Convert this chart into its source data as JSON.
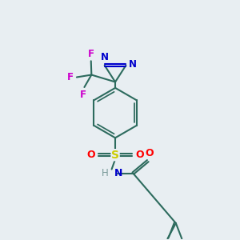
{
  "background_color": "#e8eef2",
  "bond_color": "#2d6b5e",
  "nitrogen_color": "#0000cc",
  "oxygen_color": "#ff0000",
  "sulfur_color": "#cccc00",
  "fluorine_color": "#cc00cc",
  "hydrogen_color": "#7a9a9a",
  "figsize": [
    3.0,
    3.0
  ],
  "dpi": 100,
  "xlim": [
    0,
    10
  ],
  "ylim": [
    0,
    10
  ]
}
